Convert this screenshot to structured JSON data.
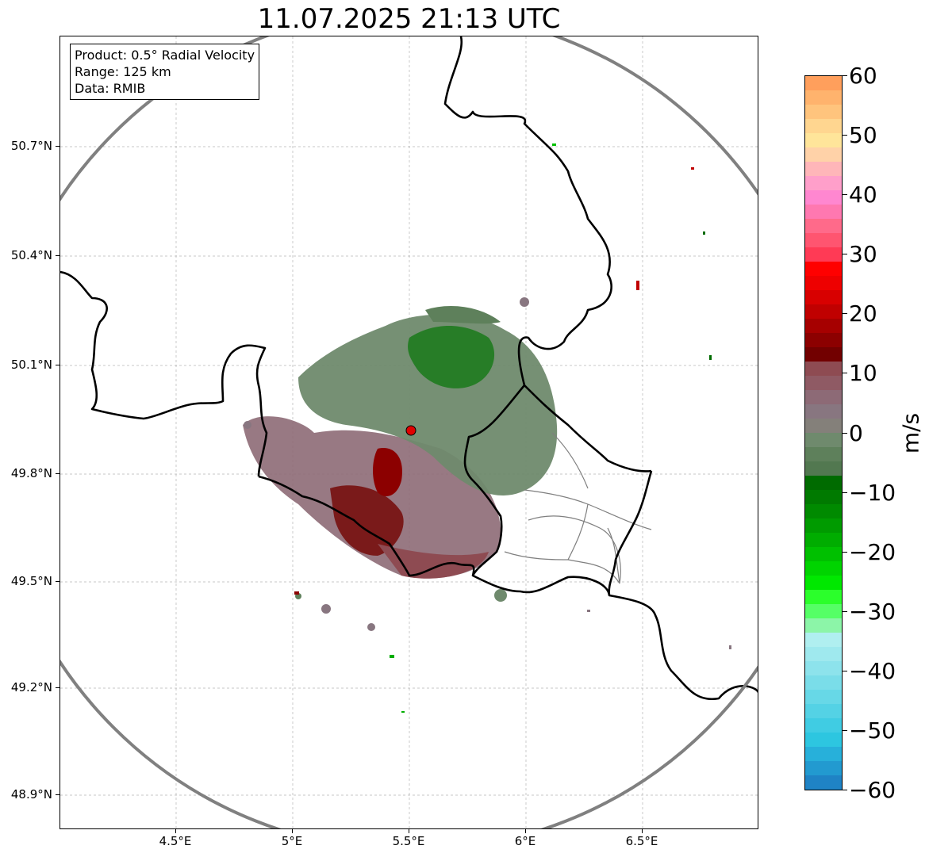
{
  "title": "11.07.2025 21:13 UTC",
  "info": {
    "product": "Product: 0.5° Radial Velocity",
    "range": "Range: 125 km",
    "data": "Data: RMIB"
  },
  "axes": {
    "y_ticks": [
      "50.7°N",
      "50.4°N",
      "50.1°N",
      "49.8°N",
      "49.5°N",
      "49.2°N",
      "48.9°N"
    ],
    "x_ticks": [
      "4.5°E",
      "5°E",
      "5.5°E",
      "6°E",
      "6.5°E"
    ]
  },
  "colorbar": {
    "unit": "m/s",
    "labels": [
      "60",
      "50",
      "40",
      "30",
      "20",
      "10",
      "0",
      "−10",
      "−20",
      "−30",
      "−40",
      "−50",
      "−60"
    ],
    "colors_top_to_bottom": [
      "#ff9f5c",
      "#ffb36d",
      "#ffc47d",
      "#ffd690",
      "#ffe59a",
      "#ffd2a8",
      "#ffb6b9",
      "#ff9fca",
      "#ff87d0",
      "#ff78b0",
      "#ff6a8a",
      "#ff5570",
      "#ff3a55",
      "#ff0000",
      "#ee0000",
      "#d80000",
      "#c00000",
      "#a60000",
      "#8c0000",
      "#720000",
      "#8e4b52",
      "#8f5a64",
      "#8d6a76",
      "#887680",
      "#84807a",
      "#6f8a6d",
      "#5e805b",
      "#527850",
      "#006b00",
      "#007a00",
      "#008a00",
      "#009b00",
      "#00ad00",
      "#00c000",
      "#00d400",
      "#00e800",
      "#2bff2b",
      "#55ff66",
      "#8cf5a8",
      "#b0eff0",
      "#9fe9ee",
      "#8de3ec",
      "#7adde9",
      "#67d8e7",
      "#54d2e5",
      "#40cce3",
      "#2dc6e0",
      "#27b0da",
      "#229ad0",
      "#1f83c5"
    ]
  },
  "radar_site": {
    "name": "",
    "color": "#e00000"
  }
}
